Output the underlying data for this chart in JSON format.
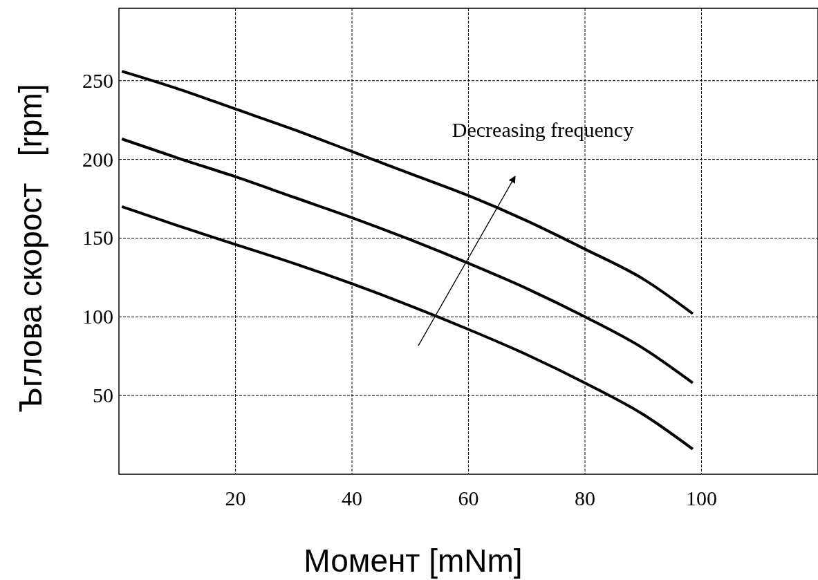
{
  "chart_data": {
    "type": "line",
    "xlabel": "Момент [mNm]",
    "ylabel": "Ъглова скорост   [rpm]",
    "xlim": [
      0,
      120
    ],
    "ylim": [
      0,
      296
    ],
    "xticks": [
      20,
      40,
      60,
      80,
      100
    ],
    "yticks": [
      50,
      100,
      150,
      200,
      250
    ],
    "grid": true,
    "marker": "none",
    "line_style": "solid",
    "x": [
      0.5,
      10,
      20,
      30,
      40,
      50,
      60,
      70,
      80,
      90,
      98.5
    ],
    "series": [
      {
        "color": "#000000",
        "values": [
          256,
          245,
          232,
          219,
          205,
          191,
          177,
          161,
          143,
          124,
          102
        ]
      },
      {
        "color": "#000000",
        "values": [
          213,
          201,
          189,
          176,
          163,
          149,
          134,
          118,
          100,
          80,
          58
        ]
      },
      {
        "color": "#000000",
        "values": [
          170,
          158,
          146,
          134,
          121,
          107,
          92,
          76,
          58,
          38,
          16
        ]
      }
    ],
    "annotations": [
      "Decreasing frequency"
    ]
  }
}
